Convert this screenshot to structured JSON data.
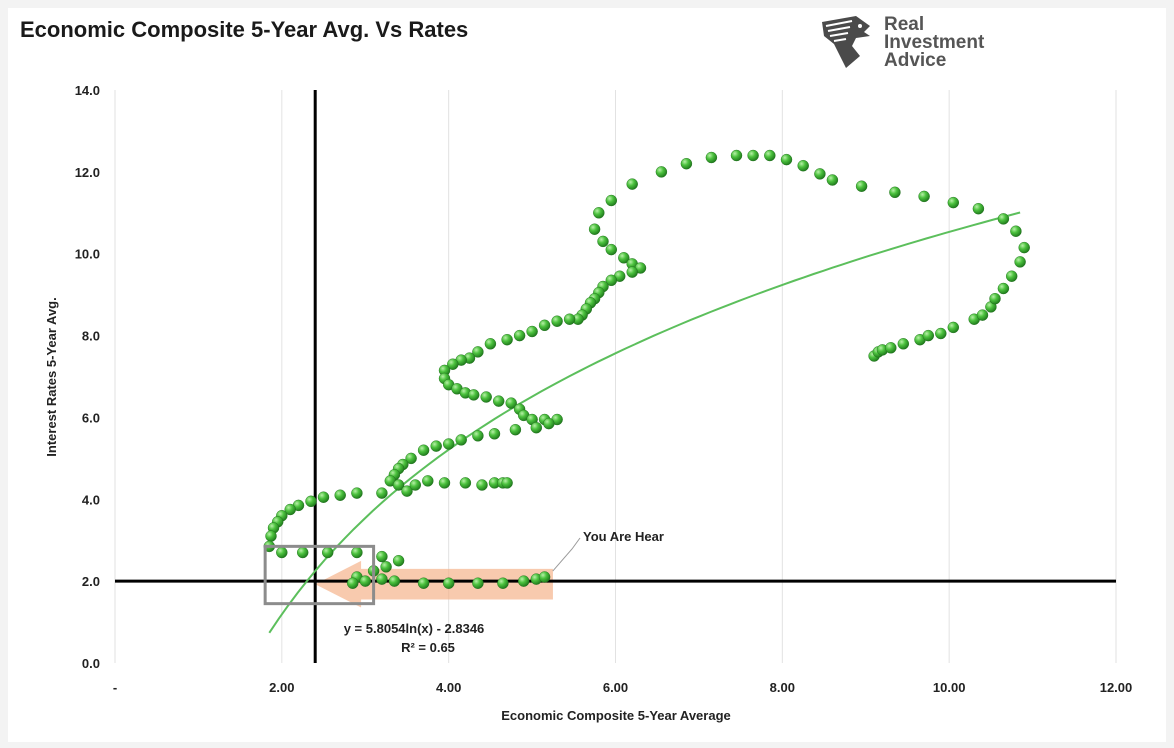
{
  "title": "Economic Composite 5-Year Avg. Vs Rates",
  "logo": {
    "icon": "eagle-head-icon",
    "line1": "Real",
    "line2": "Investment",
    "line3": "Advice"
  },
  "colors": {
    "points": "#3aa83a",
    "trendline": "#5cbf5c",
    "crosshair": "#000000",
    "box": "#8c8c8c",
    "arrow": "#f5b48c"
  },
  "chart_data": {
    "type": "scatter",
    "title": "Economic Composite 5-Year Avg. Vs Rates",
    "xlabel": "Economic Composite 5-Year Average",
    "ylabel": "Interest Rates 5-Year Avg.",
    "xlim": [
      0,
      12
    ],
    "ylim": [
      0,
      14
    ],
    "x_ticks": [
      "-",
      "2.00",
      "4.00",
      "6.00",
      "8.00",
      "10.00",
      "12.00"
    ],
    "y_ticks": [
      "0.0",
      "2.0",
      "4.0",
      "6.0",
      "8.0",
      "10.0",
      "12.0",
      "14.0"
    ],
    "grid": "vertical",
    "trendline": {
      "type": "logarithmic",
      "equation": "y = 5.8054ln(x) - 2.8346",
      "r_squared": "R² = 0.65",
      "a": 5.8054,
      "b": -2.8346,
      "x_range": [
        1.85,
        10.85
      ]
    },
    "reference_lines": {
      "x": 2.4,
      "y": 2.0
    },
    "highlight_box": {
      "x_range": [
        1.8,
        3.1
      ],
      "y_range": [
        1.45,
        2.85
      ]
    },
    "annotation": {
      "text": "You Are Hear",
      "x": 5.2,
      "y": 2.1
    },
    "series": [
      {
        "points": [
          [
            9.1,
            7.5
          ],
          [
            9.15,
            7.6
          ],
          [
            9.2,
            7.65
          ],
          [
            9.3,
            7.7
          ],
          [
            9.45,
            7.8
          ],
          [
            9.65,
            7.9
          ],
          [
            9.75,
            8.0
          ],
          [
            9.9,
            8.05
          ],
          [
            10.05,
            8.2
          ],
          [
            10.3,
            8.4
          ],
          [
            10.4,
            8.5
          ],
          [
            10.5,
            8.7
          ],
          [
            10.55,
            8.9
          ],
          [
            10.65,
            9.15
          ],
          [
            10.75,
            9.45
          ],
          [
            10.85,
            9.8
          ],
          [
            10.9,
            10.15
          ],
          [
            10.8,
            10.55
          ],
          [
            10.65,
            10.85
          ],
          [
            10.35,
            11.1
          ],
          [
            10.05,
            11.25
          ],
          [
            9.7,
            11.4
          ],
          [
            9.35,
            11.5
          ],
          [
            8.95,
            11.65
          ],
          [
            8.6,
            11.8
          ],
          [
            8.45,
            11.95
          ],
          [
            8.25,
            12.15
          ],
          [
            8.05,
            12.3
          ],
          [
            7.85,
            12.4
          ],
          [
            7.65,
            12.4
          ],
          [
            7.45,
            12.4
          ],
          [
            7.15,
            12.35
          ],
          [
            6.85,
            12.2
          ],
          [
            6.55,
            12.0
          ],
          [
            6.2,
            11.7
          ],
          [
            5.95,
            11.3
          ],
          [
            5.8,
            11.0
          ],
          [
            5.75,
            10.6
          ],
          [
            5.85,
            10.3
          ],
          [
            5.95,
            10.1
          ],
          [
            6.1,
            9.9
          ],
          [
            6.2,
            9.75
          ],
          [
            6.3,
            9.65
          ],
          [
            6.2,
            9.55
          ],
          [
            6.05,
            9.45
          ],
          [
            5.95,
            9.35
          ],
          [
            5.85,
            9.2
          ],
          [
            5.8,
            9.05
          ],
          [
            5.75,
            8.9
          ],
          [
            5.7,
            8.8
          ],
          [
            5.65,
            8.65
          ],
          [
            5.6,
            8.5
          ],
          [
            5.55,
            8.4
          ],
          [
            5.45,
            8.4
          ],
          [
            5.3,
            8.35
          ],
          [
            5.15,
            8.25
          ],
          [
            5.0,
            8.1
          ],
          [
            4.85,
            8.0
          ],
          [
            4.7,
            7.9
          ],
          [
            4.5,
            7.8
          ],
          [
            4.35,
            7.6
          ],
          [
            4.25,
            7.45
          ],
          [
            4.15,
            7.4
          ],
          [
            4.05,
            7.3
          ],
          [
            3.95,
            7.15
          ],
          [
            3.95,
            6.95
          ],
          [
            4.0,
            6.8
          ],
          [
            4.1,
            6.7
          ],
          [
            4.2,
            6.6
          ],
          [
            4.3,
            6.55
          ],
          [
            4.45,
            6.5
          ],
          [
            4.6,
            6.4
          ],
          [
            4.75,
            6.35
          ],
          [
            4.85,
            6.2
          ],
          [
            4.9,
            6.05
          ],
          [
            5.0,
            5.95
          ],
          [
            5.15,
            5.95
          ],
          [
            5.3,
            5.95
          ],
          [
            5.2,
            5.85
          ],
          [
            5.05,
            5.75
          ],
          [
            4.8,
            5.7
          ],
          [
            4.55,
            5.6
          ],
          [
            4.35,
            5.55
          ],
          [
            4.15,
            5.45
          ],
          [
            4.0,
            5.35
          ],
          [
            3.85,
            5.3
          ],
          [
            3.7,
            5.2
          ],
          [
            3.55,
            5.0
          ],
          [
            3.45,
            4.85
          ],
          [
            3.4,
            4.75
          ],
          [
            3.35,
            4.6
          ],
          [
            3.3,
            4.45
          ],
          [
            3.4,
            4.35
          ],
          [
            3.5,
            4.2
          ],
          [
            3.6,
            4.35
          ],
          [
            3.75,
            4.45
          ],
          [
            3.95,
            4.4
          ],
          [
            4.2,
            4.4
          ],
          [
            4.4,
            4.35
          ],
          [
            4.55,
            4.4
          ],
          [
            4.65,
            4.4
          ],
          [
            4.7,
            4.4
          ],
          [
            3.2,
            4.15
          ],
          [
            2.9,
            4.15
          ],
          [
            2.7,
            4.1
          ],
          [
            2.5,
            4.05
          ],
          [
            2.35,
            3.95
          ],
          [
            2.2,
            3.85
          ],
          [
            2.1,
            3.75
          ],
          [
            2.0,
            3.6
          ],
          [
            1.95,
            3.45
          ],
          [
            1.9,
            3.3
          ],
          [
            1.87,
            3.1
          ],
          [
            1.85,
            2.85
          ],
          [
            2.0,
            2.7
          ],
          [
            2.25,
            2.7
          ],
          [
            2.55,
            2.7
          ],
          [
            2.9,
            2.7
          ],
          [
            3.2,
            2.6
          ],
          [
            3.4,
            2.5
          ],
          [
            3.25,
            2.35
          ],
          [
            3.1,
            2.25
          ],
          [
            2.9,
            2.1
          ],
          [
            2.85,
            1.95
          ],
          [
            3.0,
            2.0
          ],
          [
            3.2,
            2.05
          ],
          [
            3.35,
            2.0
          ],
          [
            3.7,
            1.95
          ],
          [
            4.0,
            1.95
          ],
          [
            4.35,
            1.95
          ],
          [
            4.65,
            1.95
          ],
          [
            4.9,
            2.0
          ],
          [
            5.05,
            2.05
          ],
          [
            5.15,
            2.1
          ]
        ]
      }
    ]
  }
}
